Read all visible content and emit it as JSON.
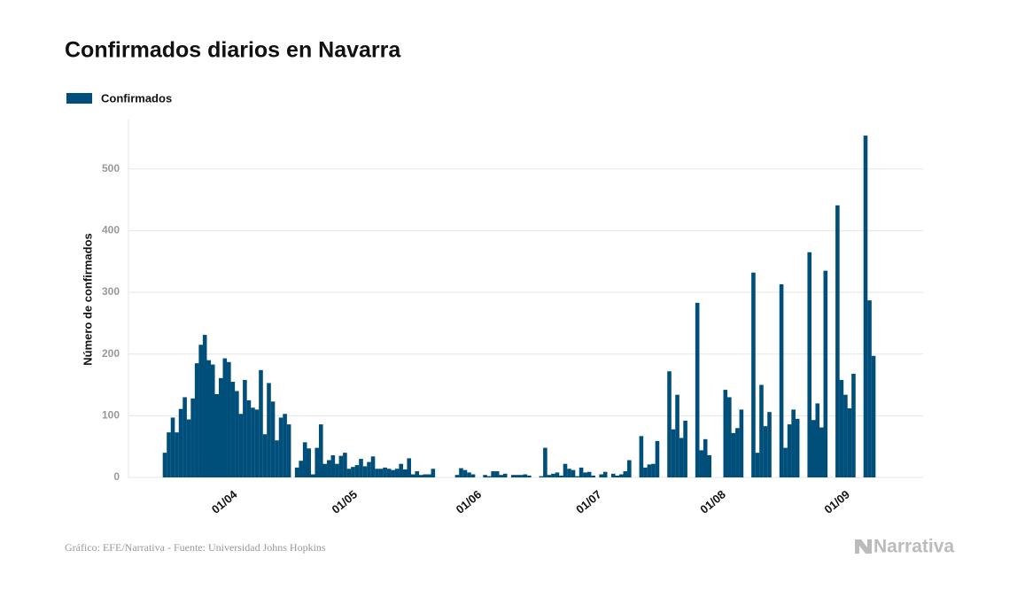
{
  "chart_data": {
    "type": "bar",
    "title": "Confirmados diarios en Navarra",
    "ylabel": "Número de confirmados",
    "source": "Gráfico: EFE/Narrativa - Fuente: Universidad Johns Hopkins",
    "brand": "Narrativa",
    "ylim": [
      0,
      580
    ],
    "yticks": [
      0,
      100,
      200,
      300,
      400,
      500
    ],
    "grid": true,
    "categories": [
      "16/03",
      "17/03",
      "18/03",
      "19/03",
      "20/03",
      "21/03",
      "22/03",
      "23/03",
      "24/03",
      "25/03",
      "26/03",
      "27/03",
      "28/03",
      "29/03",
      "30/03",
      "31/03",
      "01/04",
      "02/04",
      "03/04",
      "04/04",
      "05/04",
      "06/04",
      "07/04",
      "08/04",
      "09/04",
      "10/04",
      "11/04",
      "12/04",
      "13/04",
      "14/04",
      "15/04",
      "16/04",
      "17/04",
      "18/04",
      "19/04",
      "20/04",
      "21/04",
      "22/04",
      "23/04",
      "24/04",
      "25/04",
      "26/04",
      "27/04",
      "28/04",
      "29/04",
      "30/04",
      "01/05",
      "02/05",
      "03/05",
      "04/05",
      "05/05",
      "06/05",
      "07/05",
      "08/05",
      "09/05",
      "10/05",
      "11/05",
      "12/05",
      "13/05",
      "14/05",
      "15/05",
      "16/05",
      "17/05",
      "18/05",
      "19/05",
      "20/05",
      "21/05",
      "22/05",
      "23/05",
      "24/05",
      "25/05",
      "26/05",
      "27/05",
      "28/05",
      "29/05",
      "30/05",
      "31/05",
      "01/06",
      "02/06",
      "03/06",
      "04/06",
      "05/06",
      "06/06",
      "07/06",
      "08/06",
      "09/06",
      "10/06",
      "11/06",
      "12/06",
      "13/06",
      "14/06",
      "15/06",
      "16/06",
      "17/06",
      "18/06",
      "19/06",
      "20/06",
      "21/06",
      "22/06",
      "23/06",
      "24/06",
      "25/06",
      "26/06",
      "27/06",
      "28/06",
      "29/06",
      "30/06",
      "01/07",
      "02/07",
      "03/07",
      "04/07",
      "05/07",
      "06/07",
      "07/07",
      "08/07",
      "09/07",
      "10/07",
      "11/07",
      "12/07",
      "13/07",
      "14/07",
      "15/07",
      "16/07",
      "17/07",
      "18/07",
      "19/07",
      "20/07",
      "21/07",
      "22/07",
      "23/07",
      "24/07",
      "25/07",
      "26/07",
      "27/07",
      "28/07",
      "29/07",
      "30/07",
      "31/07",
      "01/08",
      "02/08",
      "03/08",
      "04/08",
      "05/08",
      "06/08",
      "07/08",
      "08/08",
      "09/08",
      "10/08",
      "11/08",
      "12/08",
      "13/08",
      "14/08",
      "15/08",
      "16/08",
      "17/08",
      "18/08",
      "19/08",
      "20/08",
      "21/08",
      "22/08",
      "23/08",
      "24/08",
      "25/08",
      "26/08",
      "27/08",
      "28/08",
      "29/08",
      "30/08",
      "31/08",
      "01/09",
      "02/09",
      "03/09",
      "04/09",
      "05/09",
      "06/09",
      "07/09",
      "08/09",
      "09/09"
    ],
    "series": [
      {
        "name": "Confirmados",
        "color": "#004f7a",
        "values": [
          40,
          73,
          97,
          73,
          111,
          130,
          94,
          128,
          185,
          215,
          231,
          190,
          183,
          135,
          161,
          193,
          187,
          155,
          140,
          103,
          158,
          125,
          113,
          110,
          174,
          70,
          153,
          123,
          60,
          97,
          103,
          86,
          0,
          16,
          27,
          57,
          47,
          5,
          48,
          86,
          22,
          28,
          36,
          22,
          35,
          40,
          14,
          17,
          20,
          30,
          18,
          25,
          34,
          14,
          14,
          16,
          14,
          12,
          14,
          22,
          13,
          31,
          5,
          10,
          4,
          5,
          5,
          14,
          0,
          0,
          0,
          0,
          0,
          4,
          15,
          12,
          8,
          5,
          0,
          0,
          4,
          2,
          10,
          10,
          4,
          6,
          0,
          4,
          4,
          4,
          5,
          3,
          0,
          0,
          2,
          48,
          4,
          6,
          8,
          3,
          22,
          14,
          12,
          2,
          16,
          8,
          9,
          3,
          0,
          5,
          9,
          0,
          6,
          3,
          5,
          10,
          28,
          0,
          0,
          67,
          16,
          21,
          22,
          59,
          0,
          0,
          172,
          78,
          134,
          64,
          92,
          0,
          0,
          283,
          44,
          62,
          36,
          0,
          0,
          0,
          142,
          130,
          72,
          80,
          110,
          0,
          0,
          332,
          40,
          150,
          83,
          106,
          0,
          0,
          313,
          48,
          86,
          110,
          95,
          0,
          0,
          365,
          93,
          120,
          81,
          335,
          0,
          0,
          441,
          158,
          134,
          112,
          168,
          0,
          0,
          554,
          287,
          197
        ]
      }
    ]
  }
}
